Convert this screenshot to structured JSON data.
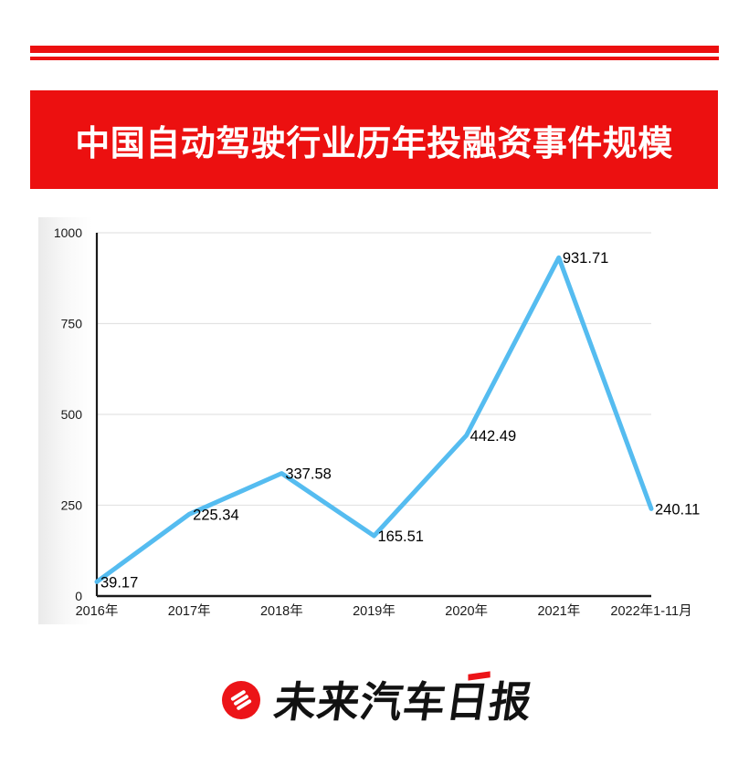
{
  "banner": {
    "title": "中国自动驾驶行业历年投融资事件规模",
    "background": "#EC1010",
    "text_color": "#FFFFFF"
  },
  "decor": {
    "stripe_color": "#EC1010"
  },
  "chart_data": {
    "type": "line",
    "title": "",
    "xlabel": "",
    "ylabel": "",
    "categories": [
      "2016年",
      "2017年",
      "2018年",
      "2019年",
      "2020年",
      "2021年",
      "2022年1-11月"
    ],
    "values": [
      39.17,
      225.34,
      337.58,
      165.51,
      442.49,
      931.71,
      240.11
    ],
    "point_labels": [
      "39.17",
      "225.34",
      "337.58",
      "165.51",
      "442.49",
      "931.71",
      "240.11"
    ],
    "yticks": [
      0,
      250,
      500,
      750,
      1000
    ],
    "ylim": [
      0,
      1000
    ],
    "grid": true,
    "legend": "none",
    "colors": {
      "line": "#55BCF0",
      "axis": "#1A1A1A",
      "grid": "#E3E3E3",
      "tick_text": "#1A1A1A",
      "point_label_text": "#000000"
    }
  },
  "logo": {
    "text_pre": "未来汽车",
    "text_accent": "日",
    "text_post": "报",
    "circle_color": "#EC1418",
    "accent_color": "#EC1418"
  }
}
